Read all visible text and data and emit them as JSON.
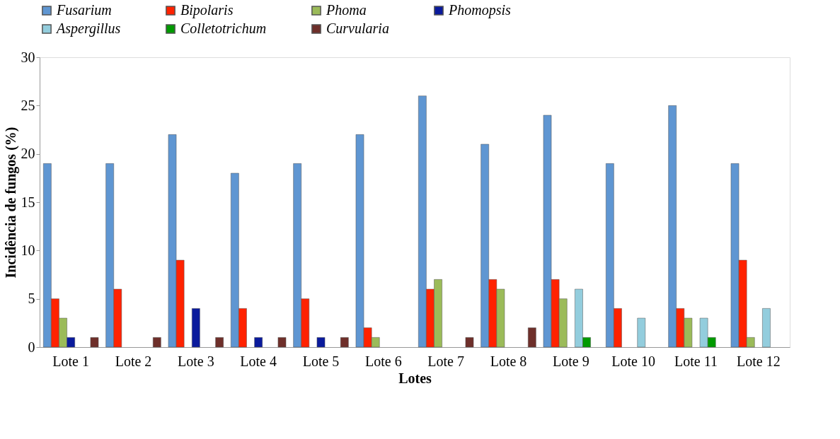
{
  "chart_data": {
    "type": "bar",
    "xlabel": "Lotes",
    "ylabel": "Incidência de fungos (%)",
    "categories": [
      "Lote 1",
      "Lote 2",
      "Lote 3",
      "Lote 4",
      "Lote 5",
      "Lote 6",
      "Lote 7",
      "Lote 8",
      "Lote 9",
      "Lote 10",
      "Lote 11",
      "Lote 12"
    ],
    "series": [
      {
        "name": "Fusarium",
        "color": "#5f96d2",
        "values": [
          19,
          19,
          22,
          18,
          19,
          22,
          26,
          21,
          24,
          19,
          25,
          19
        ]
      },
      {
        "name": "Bipolaris",
        "color": "#ff2200",
        "values": [
          5,
          6,
          9,
          4,
          5,
          2,
          6,
          7,
          7,
          4,
          4,
          9
        ]
      },
      {
        "name": "Phoma",
        "color": "#9bbb59",
        "values": [
          3,
          null,
          null,
          null,
          null,
          1,
          7,
          6,
          5,
          null,
          3,
          1
        ]
      },
      {
        "name": "Phomopsis",
        "color": "#0a1a9c",
        "values": [
          1,
          null,
          4,
          1,
          1,
          null,
          null,
          null,
          null,
          null,
          null,
          null
        ]
      },
      {
        "name": "Aspergillus",
        "color": "#93cddd",
        "values": [
          null,
          null,
          null,
          null,
          null,
          null,
          null,
          null,
          6,
          3,
          3,
          4
        ]
      },
      {
        "name": "Colletotrichum",
        "color": "#009a00",
        "values": [
          null,
          null,
          null,
          null,
          null,
          null,
          null,
          null,
          1,
          null,
          1,
          null
        ]
      },
      {
        "name": "Curvularia",
        "color": "#6e2f2a",
        "values": [
          1,
          1,
          1,
          1,
          1,
          null,
          1,
          2,
          null,
          null,
          null,
          null
        ]
      }
    ],
    "ylim": [
      0,
      30
    ],
    "yticks": [
      0,
      5,
      10,
      15,
      20,
      25,
      30
    ],
    "grid": false,
    "legend": "top"
  }
}
